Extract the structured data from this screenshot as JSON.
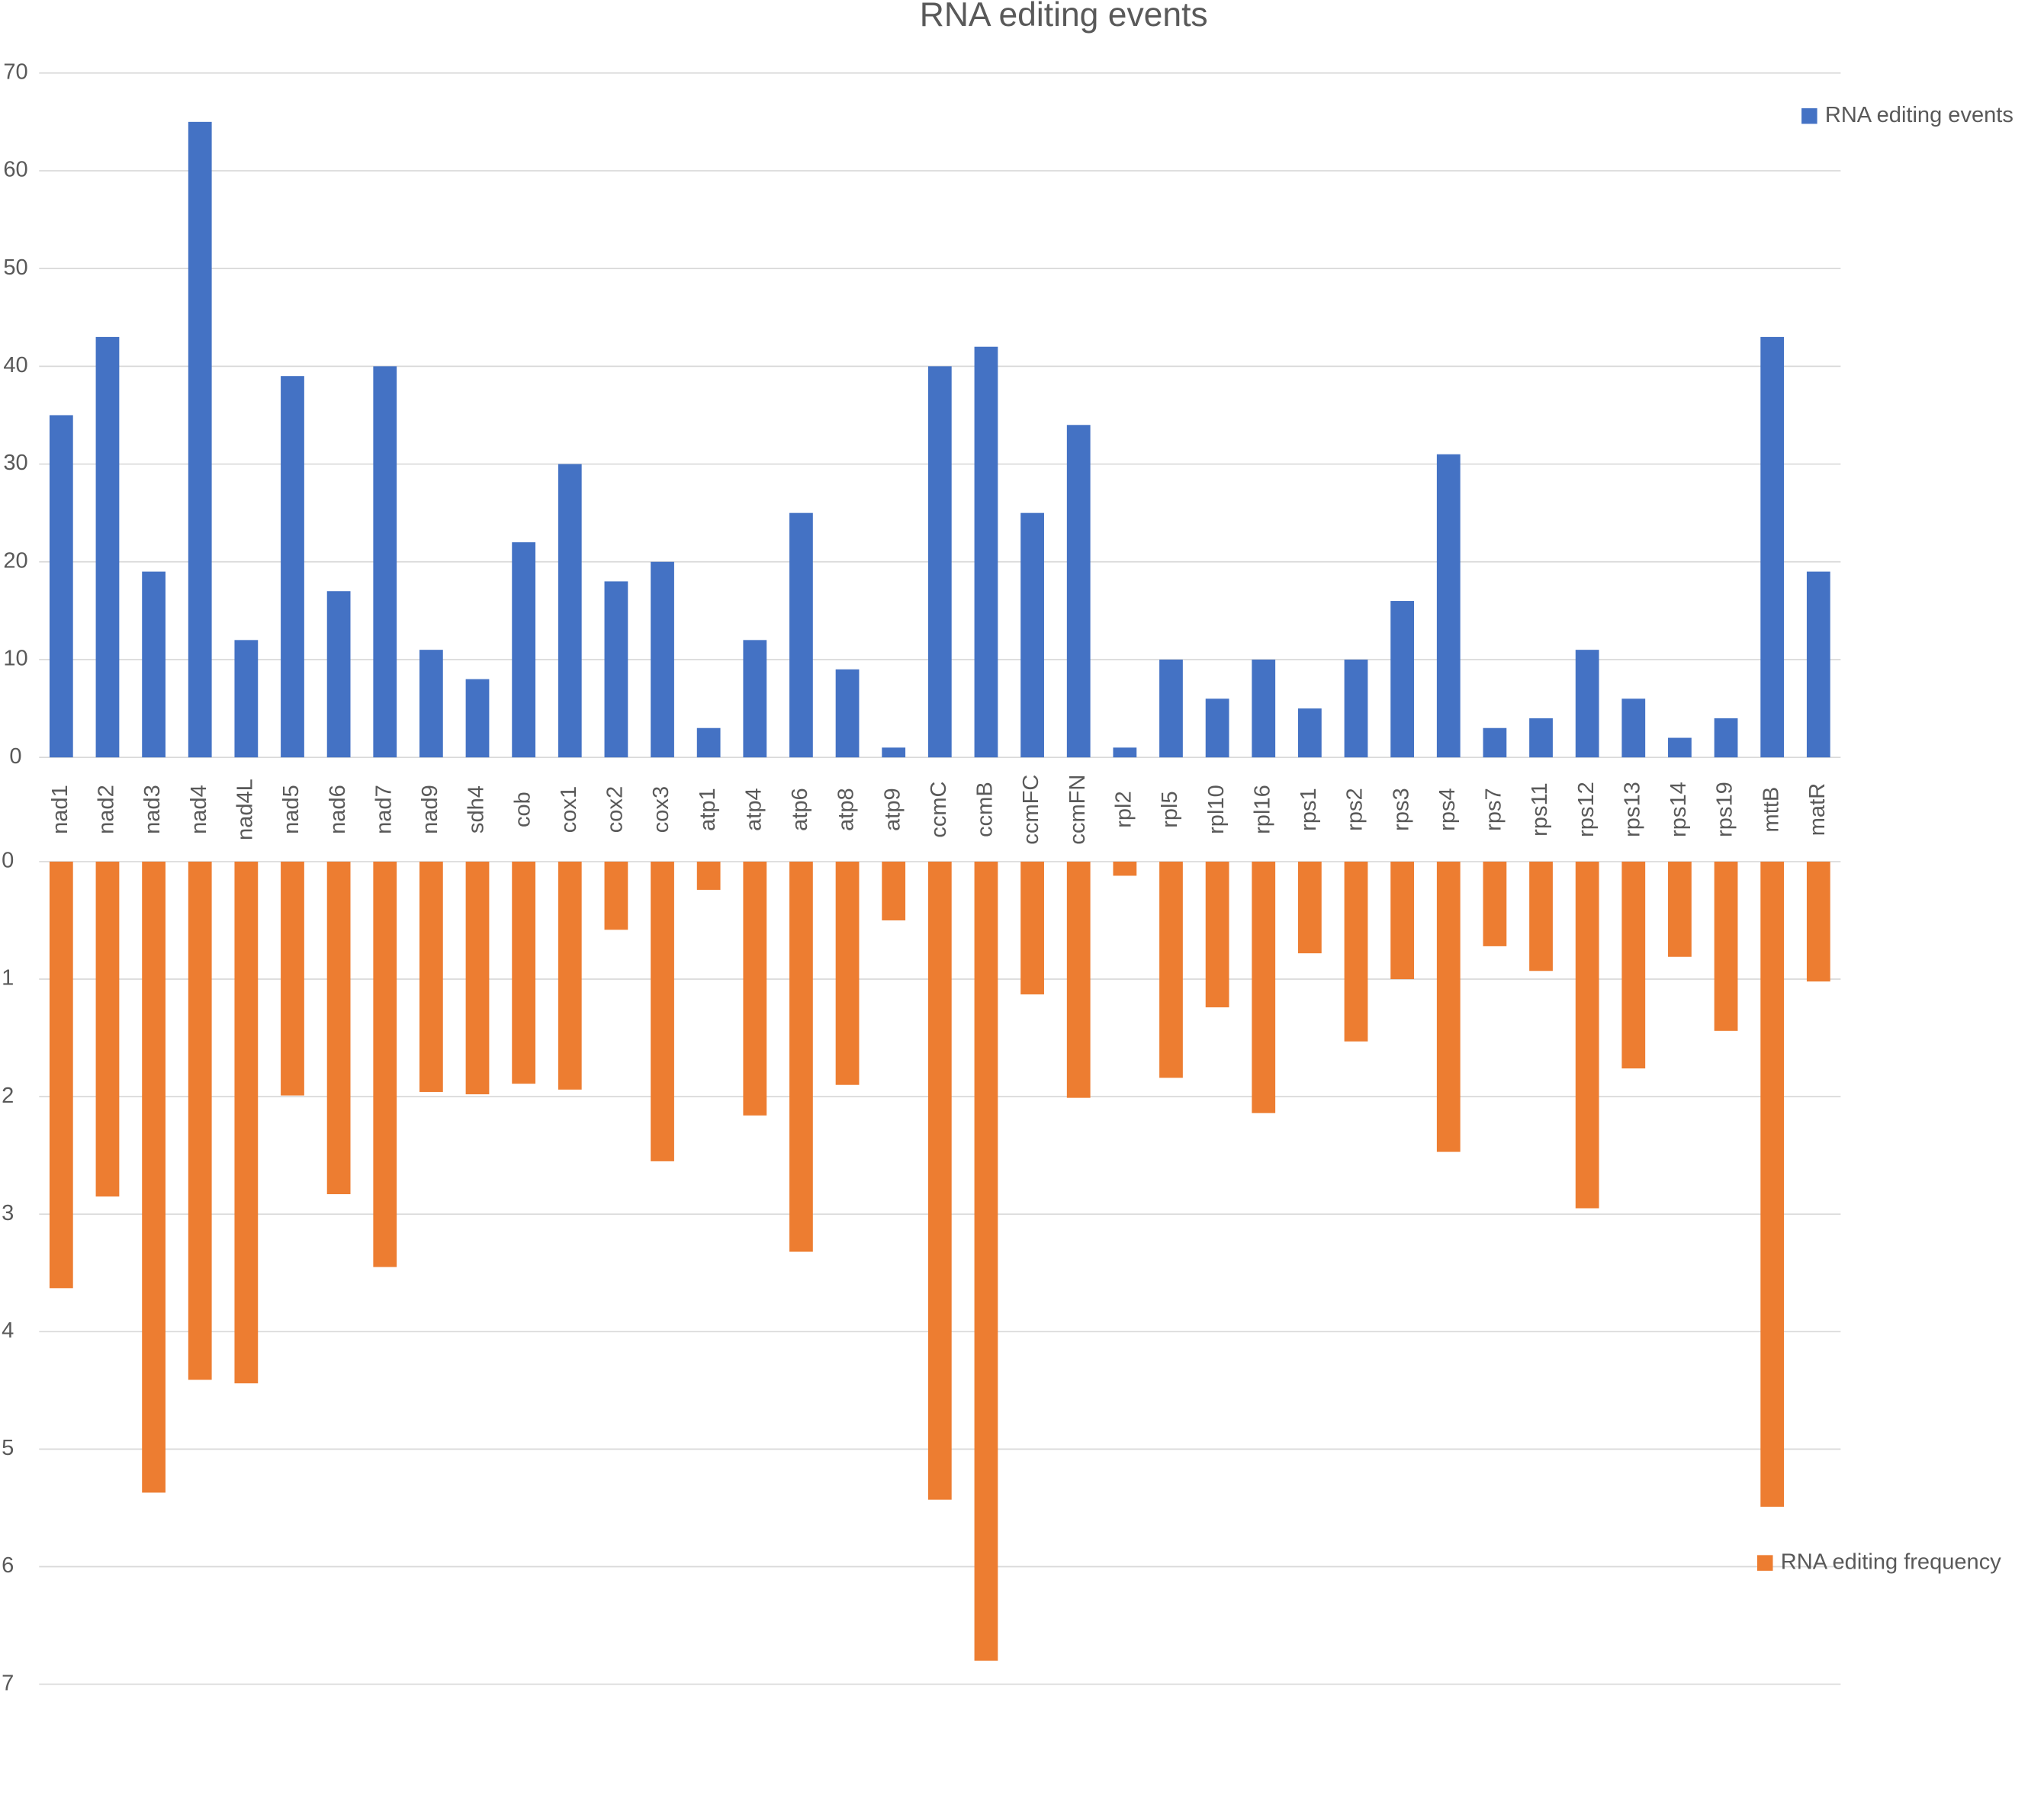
{
  "chart_data": [
    {
      "type": "bar",
      "title": "RNA editing events",
      "categories": [
        "nad1",
        "nad2",
        "nad3",
        "nad4",
        "nad4L",
        "nad5",
        "nad6",
        "nad7",
        "nad9",
        "sdh4",
        "cob",
        "cox1",
        "cox2",
        "cox3",
        "atp1",
        "atp4",
        "atp6",
        "atp8",
        "atp9",
        "ccmC",
        "ccmB",
        "ccmFC",
        "ccmFN",
        "rpl2",
        "rpl5",
        "rpl10",
        "rpl16",
        "rps1",
        "rps2",
        "rps3",
        "rps4",
        "rps7",
        "rps11",
        "rps12",
        "rps13",
        "rps14",
        "rps19",
        "mttB",
        "matR"
      ],
      "series": [
        {
          "name": "RNA editing events",
          "color": "#4472c4",
          "values": [
            35,
            43,
            19,
            65,
            12,
            39,
            17,
            40,
            11,
            8,
            22,
            30,
            18,
            20,
            3,
            12,
            25,
            9,
            1,
            40,
            42,
            25,
            34,
            1,
            10,
            6,
            10,
            5,
            10,
            16,
            31,
            3,
            4,
            11,
            6,
            2,
            4,
            43,
            19
          ]
        }
      ],
      "ylim": [
        0,
        70
      ],
      "yticks": [
        0,
        10,
        20,
        30,
        40,
        50,
        60,
        70
      ],
      "grid": true,
      "legend": "top-right"
    },
    {
      "type": "bar",
      "series": [
        {
          "name": "RNA editing frequency",
          "color": "#ed7d31",
          "values": [
            3.63,
            2.85,
            5.37,
            4.41,
            4.44,
            1.99,
            2.83,
            3.45,
            1.96,
            1.98,
            1.89,
            1.94,
            0.58,
            2.55,
            0.24,
            2.16,
            3.32,
            1.9,
            0.5,
            5.43,
            6.8,
            1.13,
            2.01,
            0.12,
            1.84,
            1.24,
            2.14,
            0.78,
            1.53,
            1.0,
            2.47,
            0.72,
            0.93,
            2.95,
            1.76,
            0.81,
            1.44,
            5.49,
            1.02
          ]
        }
      ],
      "ylim": [
        0,
        7
      ],
      "yticks": [
        0,
        1,
        2,
        3,
        4,
        5,
        6,
        7
      ],
      "y_inverted": true,
      "grid": true,
      "legend": "bottom-right"
    }
  ]
}
